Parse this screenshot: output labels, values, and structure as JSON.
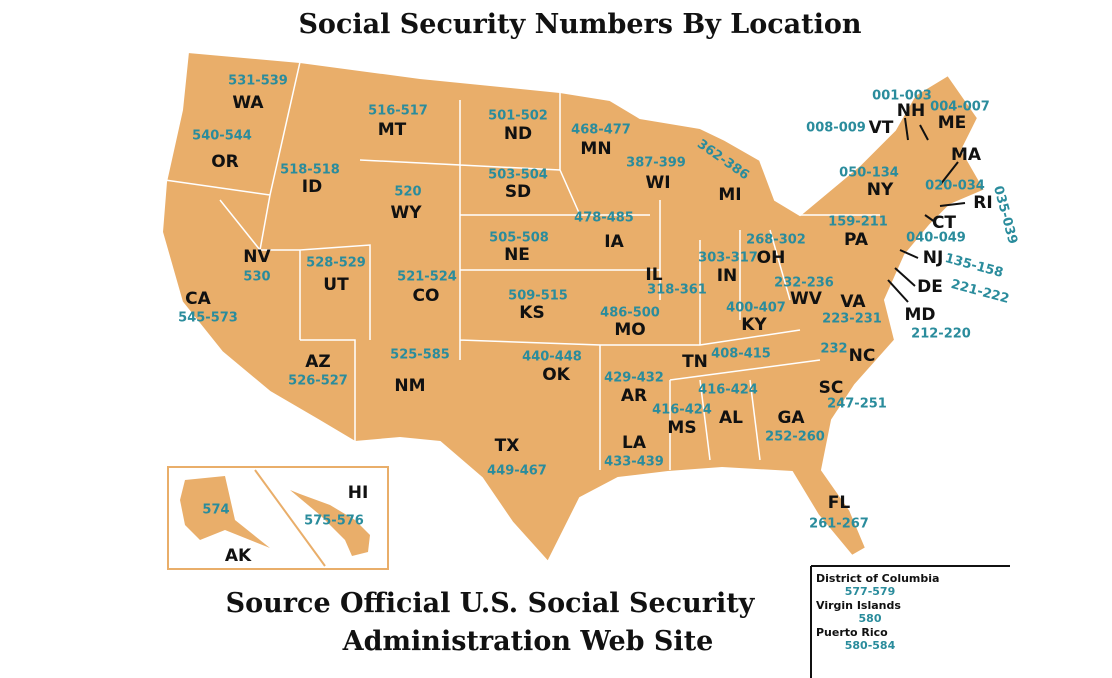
{
  "title": "Social Security Numbers By Location",
  "states": [
    {
      "abbr": "WA",
      "range": "531-539"
    },
    {
      "abbr": "OR",
      "range": "540-544"
    },
    {
      "abbr": "ID",
      "range": "518-518"
    },
    {
      "abbr": "MT",
      "range": "516-517"
    },
    {
      "abbr": "ND",
      "range": "501-502"
    },
    {
      "abbr": "MN",
      "range": "468-477"
    },
    {
      "abbr": "WI",
      "range": "387-399"
    },
    {
      "abbr": "MI",
      "range": "362-386"
    },
    {
      "abbr": "SD",
      "range": "503-504"
    },
    {
      "abbr": "WY",
      "range": "520"
    },
    {
      "abbr": "IA",
      "range": "478-485"
    },
    {
      "abbr": "NE",
      "range": "505-508"
    },
    {
      "abbr": "NV",
      "range": "530"
    },
    {
      "abbr": "UT",
      "range": "528-529"
    },
    {
      "abbr": "CO",
      "range": "521-524"
    },
    {
      "abbr": "CA",
      "range": "545-573"
    },
    {
      "abbr": "KS",
      "range": "509-515"
    },
    {
      "abbr": "IL",
      "range": "318-361"
    },
    {
      "abbr": "IN",
      "range": "303-317"
    },
    {
      "abbr": "OH",
      "range": "268-302"
    },
    {
      "abbr": "PA",
      "range": "159-211"
    },
    {
      "abbr": "NY",
      "range": "050-134"
    },
    {
      "abbr": "MO",
      "range": "486-500"
    },
    {
      "abbr": "KY",
      "range": "400-407"
    },
    {
      "abbr": "WV",
      "range": "232-236"
    },
    {
      "abbr": "VA",
      "range": "223-231"
    },
    {
      "abbr": "AZ",
      "range": "526-527"
    },
    {
      "abbr": "NM",
      "range": "525-585"
    },
    {
      "abbr": "OK",
      "range": "440-448"
    },
    {
      "abbr": "TN",
      "range": "408-415"
    },
    {
      "abbr": "NC",
      "range": "232"
    },
    {
      "abbr": "AR",
      "range": "429-432"
    },
    {
      "abbr": "AL",
      "range": "416-424"
    },
    {
      "abbr": "MS",
      "range": "416-424"
    },
    {
      "abbr": "GA",
      "range": "252-260"
    },
    {
      "abbr": "SC",
      "range": "247-251"
    },
    {
      "abbr": "TX",
      "range": "449-467"
    },
    {
      "abbr": "LA",
      "range": "433-439"
    },
    {
      "abbr": "FL",
      "range": "261-267"
    },
    {
      "abbr": "AK",
      "range": "574"
    },
    {
      "abbr": "HI",
      "range": "575-576"
    },
    {
      "abbr": "NH",
      "range": "001-003"
    },
    {
      "abbr": "ME",
      "range": "004-007"
    },
    {
      "abbr": "VT",
      "range": "008-009"
    },
    {
      "abbr": "MA",
      "range": "020-034"
    },
    {
      "abbr": "RI",
      "range": "035-039"
    },
    {
      "abbr": "CT",
      "range": "040-049"
    },
    {
      "abbr": "NJ",
      "range": "135-158"
    },
    {
      "abbr": "DE",
      "range": "221-222"
    },
    {
      "abbr": "MD",
      "range": "212-220"
    }
  ],
  "source": [
    "Source Official U.S. Social Security",
    "Administration Web Site"
  ],
  "other": [
    {
      "name": "District of Columbia",
      "range": "577-579"
    },
    {
      "name": "Virgin Islands",
      "range": "580"
    },
    {
      "name": "Puerto Rico",
      "range": "580-584"
    }
  ]
}
